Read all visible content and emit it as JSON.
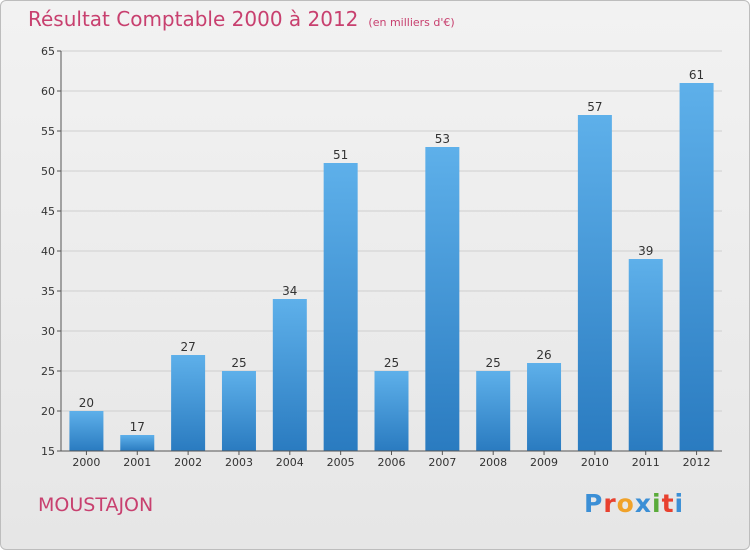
{
  "title": {
    "main": "Résultat Comptable 2000 à 2012",
    "unit": "(en milliers d'€)"
  },
  "commune": "MOUSTAJON",
  "logo": {
    "letters": [
      "P",
      "r",
      "o",
      "x",
      "i",
      "t",
      "i"
    ],
    "colors": [
      "#3b8fd6",
      "#e8412f",
      "#f0a22a",
      "#3b8fd6",
      "#5aab3a",
      "#e8412f",
      "#3b8fd6"
    ]
  },
  "colors": {
    "title": "#c8406f",
    "bar_top": "#5eb0ea",
    "bar_bottom": "#2a7bc0",
    "grid": "#cfcfcf"
  },
  "chart_data": {
    "type": "bar",
    "title": "Résultat Comptable 2000 à 2012",
    "xlabel": "",
    "ylabel": "",
    "categories": [
      "2000",
      "2001",
      "2002",
      "2003",
      "2004",
      "2005",
      "2006",
      "2007",
      "2008",
      "2009",
      "2010",
      "2011",
      "2012"
    ],
    "values": [
      20,
      17,
      27,
      25,
      34,
      51,
      25,
      53,
      25,
      26,
      57,
      39,
      61
    ],
    "ylim": [
      15,
      65
    ],
    "yticks": [
      15,
      20,
      25,
      30,
      35,
      40,
      45,
      50,
      55,
      60,
      65
    ],
    "grid": true
  }
}
